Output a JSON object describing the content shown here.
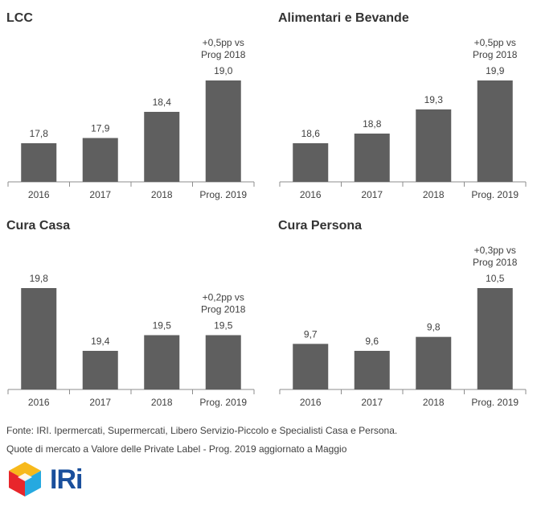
{
  "chart_data": [
    {
      "type": "bar",
      "title": "LCC",
      "categories": [
        "2016",
        "2017",
        "2018",
        "Prog. 2019"
      ],
      "values": [
        17.8,
        17.9,
        18.4,
        19.0
      ],
      "labels": [
        "17,8",
        "17,9",
        "18,4",
        "19,0"
      ],
      "annotation": [
        "+0,5pp vs",
        "Prog 2018"
      ],
      "bar_color": "#5f5f5f"
    },
    {
      "type": "bar",
      "title": "Alimentari  e Bevande",
      "categories": [
        "2016",
        "2017",
        "2018",
        "Prog. 2019"
      ],
      "values": [
        18.6,
        18.8,
        19.3,
        19.9
      ],
      "labels": [
        "18,6",
        "18,8",
        "19,3",
        "19,9"
      ],
      "annotation": [
        "+0,5pp vs",
        "Prog 2018"
      ],
      "bar_color": "#5f5f5f"
    },
    {
      "type": "bar",
      "title": "Cura Casa",
      "categories": [
        "2016",
        "2017",
        "2018",
        "Prog. 2019"
      ],
      "values": [
        19.8,
        19.4,
        19.5,
        19.5
      ],
      "labels": [
        "19,8",
        "19,4",
        "19,5",
        "19,5"
      ],
      "annotation": [
        "+0,2pp vs",
        "Prog 2018"
      ],
      "bar_color": "#5f5f5f"
    },
    {
      "type": "bar",
      "title": "Cura Persona",
      "categories": [
        "2016",
        "2017",
        "2018",
        "Prog. 2019"
      ],
      "values": [
        9.7,
        9.6,
        9.8,
        10.5
      ],
      "labels": [
        "9,7",
        "9,6",
        "9,8",
        "10,5"
      ],
      "annotation": [
        "+0,3pp vs",
        "Prog 2018"
      ],
      "bar_color": "#5f5f5f"
    }
  ],
  "footer": {
    "source": "Fonte: IRI. Ipermercati, Supermercati, Libero Servizio-Piccolo e Specialisti Casa e Persona.",
    "note": "Quote di mercato a Valore delle Private Label - Prog. 2019 aggiornato a Maggio"
  },
  "logo": {
    "text": "IRi",
    "colors": [
      "#e8262b",
      "#f7b91b",
      "#26a9e0",
      "#1a4f9c"
    ]
  }
}
